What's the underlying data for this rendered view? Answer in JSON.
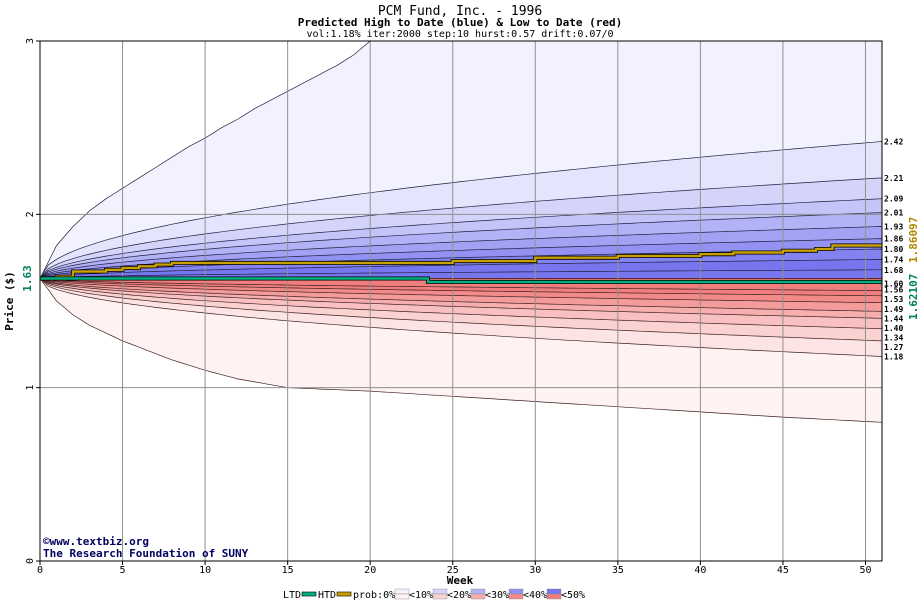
{
  "chart_data": {
    "type": "area",
    "title": "PCM Fund, Inc. - 1996",
    "subtitle": "Predicted High to Date (blue) &  Low to Date (red)",
    "params": "vol:1.18% iter:2000 step:10 hurst:0.57 drift:0.07/0",
    "xlabel": "Week",
    "ylabel": "Price ($)",
    "xlim": [
      0,
      51
    ],
    "ylim": [
      0,
      3
    ],
    "x_ticks": [
      0,
      5,
      10,
      15,
      20,
      25,
      30,
      35,
      40,
      45,
      50
    ],
    "y_ticks": [
      0,
      1,
      2,
      3
    ],
    "grid": true,
    "start_price": 1.63,
    "start_label": "1.63",
    "outer_upper_x": [
      0,
      1,
      2,
      3,
      4,
      5,
      6,
      7,
      8,
      9,
      10,
      11,
      12,
      13,
      14,
      15,
      16,
      17,
      18,
      19,
      20
    ],
    "outer_upper_y": [
      1.63,
      1.82,
      1.93,
      2.02,
      2.09,
      2.15,
      2.21,
      2.27,
      2.33,
      2.39,
      2.44,
      2.5,
      2.55,
      2.61,
      2.66,
      2.71,
      2.76,
      2.81,
      2.86,
      2.92,
      3.0
    ],
    "outer_lower_x": [
      0,
      1,
      2,
      3,
      5,
      8,
      10,
      12,
      15,
      20,
      25,
      30,
      35,
      40,
      45,
      51
    ],
    "outer_lower_y": [
      1.63,
      1.5,
      1.42,
      1.36,
      1.27,
      1.16,
      1.1,
      1.05,
      1.0,
      0.98,
      0.95,
      0.92,
      0.89,
      0.86,
      0.83,
      0.8
    ],
    "band_end_upper": [
      2.42,
      2.21,
      2.09,
      2.01,
      1.93,
      1.86,
      1.8,
      1.74,
      1.68
    ],
    "band_end_lower": [
      1.18,
      1.27,
      1.34,
      1.4,
      1.44,
      1.49,
      1.53,
      1.56
    ],
    "right_labels": [
      "2.42",
      "2.21",
      "2.09",
      "2.01",
      "1.93",
      "1.86",
      "1.80",
      "1.74",
      "1.68",
      "1.60",
      "1.56",
      "1.53",
      "1.49",
      "1.44",
      "1.40",
      "1.34",
      "1.27",
      "1.18"
    ],
    "series": [
      {
        "name": "HTD",
        "color": "#c8a000",
        "x": [
          0,
          1,
          2,
          4,
          5,
          6,
          7,
          8,
          10,
          15,
          20,
          25,
          30,
          35,
          40,
          42,
          45,
          47,
          48,
          51
        ],
        "values": [
          1.63,
          1.64,
          1.67,
          1.68,
          1.69,
          1.7,
          1.71,
          1.72,
          1.72,
          1.72,
          1.72,
          1.73,
          1.75,
          1.76,
          1.77,
          1.78,
          1.79,
          1.8,
          1.82,
          1.82
        ]
      },
      {
        "name": "LTD",
        "color": "#00b080",
        "x": [
          0,
          5,
          10,
          15,
          20,
          23,
          23.5,
          30,
          40,
          51
        ],
        "values": [
          1.63,
          1.63,
          1.63,
          1.63,
          1.63,
          1.63,
          1.61,
          1.61,
          1.61,
          1.61
        ]
      }
    ],
    "value_labels_right": [
      "1.62107",
      "1.86097"
    ],
    "legend": {
      "placement": "bottom",
      "items": [
        "LTD",
        "HTD",
        "prob:0%",
        "<10%",
        "<20%",
        "<30%",
        "<40%",
        "<50%"
      ]
    },
    "credits": [
      "©www.textbiz.org",
      "The Research Foundation of SUNY"
    ],
    "colors": {
      "blue_bands": [
        "#f2f2fe",
        "#e4e4fc",
        "#d4d4fa",
        "#c4c4f8",
        "#b2b2f6",
        "#a2a2f4",
        "#9292f2",
        "#8282f0",
        "#7676ee"
      ],
      "red_bands": [
        "#fef2f2",
        "#fce4e4",
        "#fad2d2",
        "#f8c0c0",
        "#f6aeae",
        "#f49c9c",
        "#f28a8a",
        "#f07e7e"
      ],
      "htd_line": "#c8a000",
      "ltd_line": "#00b080",
      "grid": "#909090",
      "title": "#000000"
    }
  }
}
